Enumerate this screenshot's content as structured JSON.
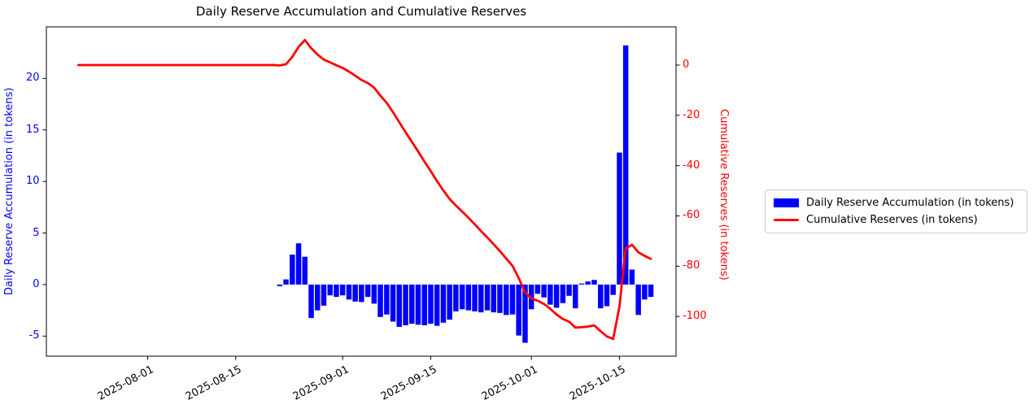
{
  "figure": {
    "background": "#ffffff"
  },
  "chart_data": {
    "type": "bar+line",
    "title": "Daily Reserve Accumulation and Cumulative Reserves",
    "grid": false,
    "x0": "2025-07-21",
    "dates": [
      "2025-07-21",
      "2025-07-22",
      "2025-07-23",
      "2025-07-24",
      "2025-07-25",
      "2025-07-26",
      "2025-07-27",
      "2025-07-28",
      "2025-07-29",
      "2025-07-30",
      "2025-07-31",
      "2025-08-01",
      "2025-08-02",
      "2025-08-03",
      "2025-08-04",
      "2025-08-05",
      "2025-08-06",
      "2025-08-07",
      "2025-08-08",
      "2025-08-09",
      "2025-08-10",
      "2025-08-11",
      "2025-08-12",
      "2025-08-13",
      "2025-08-14",
      "2025-08-15",
      "2025-08-16",
      "2025-08-17",
      "2025-08-18",
      "2025-08-19",
      "2025-08-20",
      "2025-08-21",
      "2025-08-22",
      "2025-08-23",
      "2025-08-24",
      "2025-08-25",
      "2025-08-26",
      "2025-08-27",
      "2025-08-28",
      "2025-08-29",
      "2025-08-30",
      "2025-08-31",
      "2025-09-01",
      "2025-09-02",
      "2025-09-03",
      "2025-09-04",
      "2025-09-05",
      "2025-09-06",
      "2025-09-07",
      "2025-09-08",
      "2025-09-09",
      "2025-09-10",
      "2025-09-11",
      "2025-09-12",
      "2025-09-13",
      "2025-09-14",
      "2025-09-15",
      "2025-09-16",
      "2025-09-17",
      "2025-09-18",
      "2025-09-19",
      "2025-09-20",
      "2025-09-21",
      "2025-09-22",
      "2025-09-23",
      "2025-09-24",
      "2025-09-25",
      "2025-09-26",
      "2025-09-27",
      "2025-09-28",
      "2025-09-29",
      "2025-09-30",
      "2025-10-01",
      "2025-10-02",
      "2025-10-03",
      "2025-10-04",
      "2025-10-05",
      "2025-10-06",
      "2025-10-07",
      "2025-10-08",
      "2025-10-09",
      "2025-10-10",
      "2025-10-11",
      "2025-10-12",
      "2025-10-13",
      "2025-10-14",
      "2025-10-15",
      "2025-10-16",
      "2025-10-17",
      "2025-10-18",
      "2025-10-19",
      "2025-10-20"
    ],
    "series": [
      {
        "name": "Daily Reserve Accumulation (in tokens)",
        "type": "bar",
        "axis": "left",
        "color": "#0000ff",
        "values": [
          0,
          0,
          0,
          0,
          0,
          0,
          0,
          0,
          0,
          0,
          0,
          0,
          0,
          0,
          0,
          0,
          0,
          0,
          0,
          0,
          0,
          0,
          0,
          0,
          0,
          0,
          0,
          0,
          0,
          0,
          0,
          0,
          -0.15,
          0.5,
          2.9,
          4.0,
          2.7,
          -3.25,
          -2.5,
          -2.05,
          -1.05,
          -1.2,
          -1.05,
          -1.45,
          -1.65,
          -1.7,
          -1.2,
          -1.85,
          -3.15,
          -2.9,
          -3.6,
          -4.1,
          -3.95,
          -3.8,
          -3.9,
          -3.95,
          -3.8,
          -4.0,
          -3.7,
          -3.4,
          -2.6,
          -2.4,
          -2.5,
          -2.6,
          -2.7,
          -2.5,
          -2.7,
          -2.75,
          -2.95,
          -2.9,
          -4.95,
          -5.65,
          -2.4,
          -0.9,
          -1.25,
          -1.95,
          -2.25,
          -1.8,
          -1.1,
          -2.3,
          0.1,
          0.3,
          0.45,
          -2.3,
          -2.1,
          -1.0,
          12.8,
          23.2,
          1.45,
          -2.95,
          -1.45,
          -1.2
        ]
      },
      {
        "name": "Cumulative Reserves (in tokens)",
        "type": "line",
        "axis": "right",
        "color": "#ff0000",
        "values": [
          0,
          0,
          0,
          0,
          0,
          0,
          0,
          0,
          0,
          0,
          0,
          0,
          0,
          0,
          0,
          0,
          0,
          0,
          0,
          0,
          0,
          0,
          0,
          0,
          0,
          0,
          0,
          0,
          0,
          0,
          0,
          0,
          -0.15,
          0.35,
          3.25,
          7.25,
          9.95,
          6.7,
          4.2,
          2.15,
          1.1,
          -0.1,
          -1.15,
          -2.6,
          -4.25,
          -5.95,
          -7.15,
          -9.0,
          -12.15,
          -15.05,
          -18.65,
          -22.75,
          -26.7,
          -30.5,
          -34.4,
          -38.35,
          -42.15,
          -46.15,
          -49.85,
          -53.25,
          -55.85,
          -58.25,
          -60.75,
          -63.35,
          -66.05,
          -68.55,
          -71.25,
          -74.0,
          -76.95,
          -79.85,
          -84.8,
          -90.45,
          -92.85,
          -93.75,
          -95.0,
          -96.95,
          -99.2,
          -101.0,
          -102.1,
          -104.4,
          -104.3,
          -104.0,
          -103.55,
          -105.85,
          -107.95,
          -108.95,
          -96.15,
          -72.95,
          -71.5,
          -74.45,
          -75.9,
          -77.1
        ]
      }
    ],
    "left_axis": {
      "label": "Daily Reserve Accumulation (in tokens)",
      "color": "#0000ff",
      "ticks": [
        20,
        15,
        10,
        5,
        0,
        -5
      ],
      "ylim": [
        -6.95,
        25.0
      ]
    },
    "right_axis": {
      "label": "Cumulative Reserves (in tokens)",
      "color": "#ff0000",
      "ticks": [
        0,
        -20,
        -40,
        -60,
        -80,
        -100
      ],
      "ylim": [
        -115.8,
        15.2
      ]
    },
    "x_axis": {
      "tick_labels": [
        "2025-08-01",
        "2025-08-15",
        "2025-09-01",
        "2025-09-15",
        "2025-10-01",
        "2025-10-15"
      ],
      "xlim_days": [
        -5.1,
        95.0
      ],
      "rotation_deg": 28
    },
    "legend": {
      "position": "outside-right",
      "entries": [
        "Daily Reserve Accumulation (in tokens)",
        "Cumulative Reserves (in tokens)"
      ]
    }
  }
}
